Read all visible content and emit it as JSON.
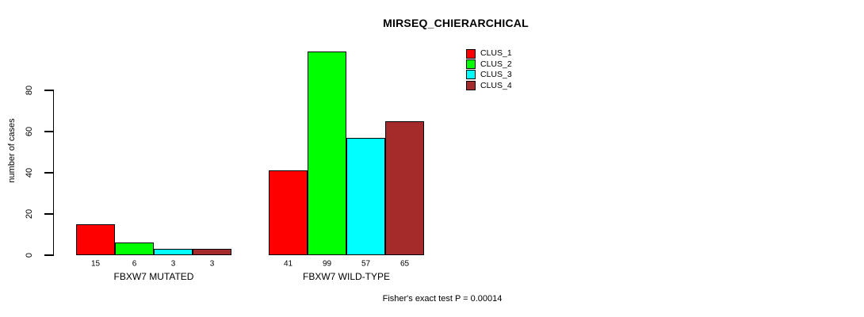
{
  "title": "MIRSEQ_CHIERARCHICAL",
  "chart_data": {
    "type": "bar",
    "title": "MIRSEQ_CHIERARCHICAL",
    "ylabel": "number of cases",
    "xlabel": "",
    "categories": [
      "FBXW7 MUTATED",
      "FBXW7 WILD-TYPE"
    ],
    "series": [
      {
        "name": "CLUS_1",
        "color": "#ff0000",
        "values": [
          15,
          41
        ]
      },
      {
        "name": "CLUS_2",
        "color": "#00ff00",
        "values": [
          6,
          99
        ]
      },
      {
        "name": "CLUS_3",
        "color": "#00ffff",
        "values": [
          3,
          57
        ]
      },
      {
        "name": "CLUS_4",
        "color": "#a52a2a",
        "values": [
          3,
          65
        ]
      }
    ],
    "yticks": [
      0,
      20,
      40,
      60,
      80
    ],
    "ylim": [
      0,
      100
    ],
    "grid": false,
    "legend_position": "top-right",
    "bar_value_labels": true,
    "annotation": "Fisher's exact test P = 0.00014"
  },
  "footer": {
    "text": "Fisher's exact test P = 0.00014"
  },
  "colors": {
    "background": "#ffffff",
    "axis": "#000000",
    "text": "#000000"
  }
}
